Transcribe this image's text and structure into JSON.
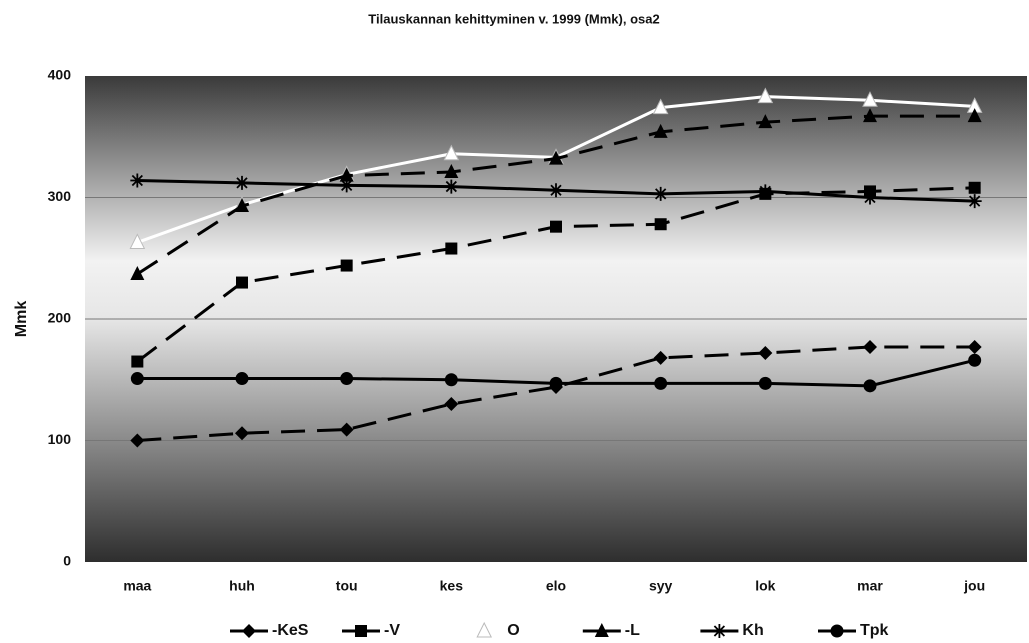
{
  "chart_data": {
    "type": "line",
    "title": "Tilauskannan kehittyminen v. 1999  (Mmk), osa2",
    "y_label": "Mmk",
    "categories": [
      "maa",
      "huh",
      "tou",
      "kes",
      "elo",
      "syy",
      "lok",
      "mar",
      "jou"
    ],
    "ylim": [
      0,
      400
    ],
    "yticks": [
      0,
      100,
      200,
      300,
      400
    ],
    "grid": true,
    "legend": "bottom",
    "series": [
      {
        "name": "-KeS",
        "color": "#000000",
        "marker": "diamond",
        "dashed": true,
        "values": [
          100,
          106,
          109,
          130,
          144,
          168,
          172,
          177,
          177
        ]
      },
      {
        "name": "-V",
        "color": "#000000",
        "marker": "square",
        "dashed": true,
        "values": [
          165,
          230,
          244,
          258,
          276,
          278,
          303,
          305,
          308
        ]
      },
      {
        "name": "O",
        "color": "#ffffff",
        "marker": "triangle",
        "dashed": false,
        "values": [
          263,
          294,
          319,
          336,
          333,
          374,
          383,
          380,
          375
        ]
      },
      {
        "name": "-L",
        "color": "#000000",
        "marker": "triangle",
        "dashed": true,
        "values": [
          237,
          293,
          318,
          321,
          332,
          354,
          362,
          367,
          367
        ]
      },
      {
        "name": "Kh",
        "color": "#000000",
        "marker": "asterisk",
        "dashed": false,
        "values": [
          314,
          312,
          310,
          309,
          306,
          303,
          305,
          300,
          297
        ]
      },
      {
        "name": "Tpk",
        "color": "#000000",
        "marker": "circle",
        "dashed": false,
        "values": [
          151,
          151,
          151,
          150,
          147,
          147,
          147,
          145,
          166
        ]
      }
    ]
  }
}
